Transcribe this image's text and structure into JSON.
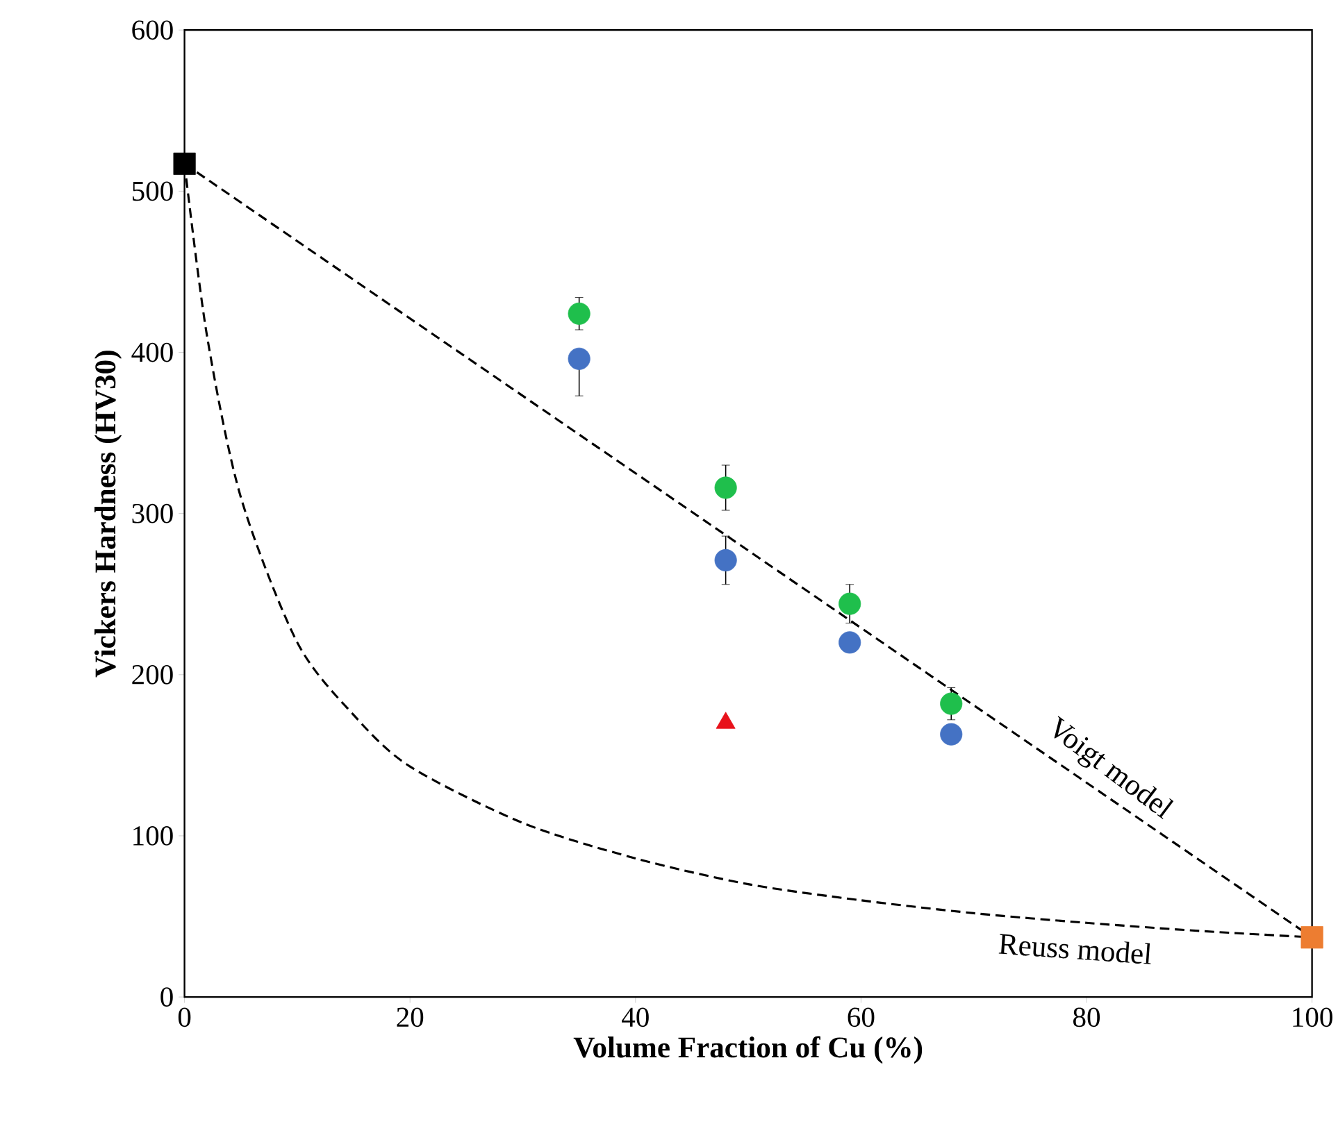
{
  "chart_data": {
    "type": "scatter",
    "xlabel": "Volume Fraction of Cu (%)",
    "ylabel": "Vickers Hardness (HV30)",
    "xlim": [
      0,
      100
    ],
    "ylim": [
      0,
      600
    ],
    "xticks": [
      0,
      20,
      40,
      60,
      80,
      100
    ],
    "yticks": [
      0,
      100,
      200,
      300,
      400,
      500,
      600
    ],
    "grid": false,
    "series": [
      {
        "type": "line",
        "line_style": "dashed",
        "marker": "none",
        "color": "#000000",
        "x": [
          0,
          100
        ],
        "values": [
          517,
          37
        ]
      },
      {
        "type": "line",
        "line_style": "dashed",
        "marker": "none",
        "color": "#000000",
        "x": [
          0,
          2,
          5,
          10,
          15,
          20,
          30,
          40,
          50,
          60,
          70,
          80,
          90,
          100
        ],
        "values": [
          517,
          410,
          310,
          220,
          175,
          143,
          108,
          86,
          70,
          60,
          52,
          46,
          41,
          37
        ]
      },
      {
        "marker": "square",
        "color": "#000000",
        "x": [
          0
        ],
        "values": [
          517
        ]
      },
      {
        "marker": "square",
        "color": "#ed7d31",
        "x": [
          100
        ],
        "values": [
          37
        ]
      },
      {
        "marker": "circle",
        "color": "#4472c4",
        "x": [
          35,
          48,
          59,
          68
        ],
        "values": [
          396,
          271,
          220,
          163
        ],
        "errors": [
          [
            373,
            396
          ],
          15,
          null,
          null
        ]
      },
      {
        "marker": "circle",
        "color": "#1fbf4c",
        "x": [
          35,
          48,
          59,
          68
        ],
        "values": [
          424,
          316,
          244,
          182
        ],
        "errors": [
          10,
          14,
          12,
          10
        ]
      },
      {
        "marker": "triangle",
        "color": "#e8121b",
        "x": [
          48
        ],
        "values": [
          170
        ]
      }
    ],
    "annotations": [
      "Voigt model",
      "Reuss model"
    ]
  }
}
